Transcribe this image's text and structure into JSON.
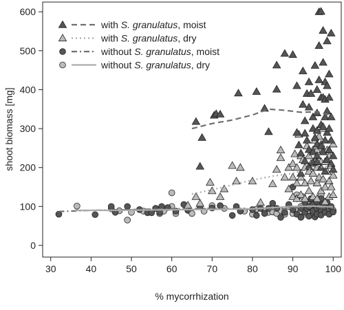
{
  "chart_data": {
    "type": "scatter",
    "title": "",
    "xlabel": "% mycorrhization",
    "ylabel": "shoot biomass [mg]",
    "xlim": [
      28,
      102
    ],
    "ylim": [
      -30,
      625
    ],
    "xticks": [
      30,
      40,
      50,
      60,
      70,
      80,
      90,
      100
    ],
    "yticks": [
      0,
      100,
      200,
      300,
      400,
      500,
      600
    ],
    "grid": false,
    "legend_position": "top-left",
    "series": [
      {
        "name": "with S. granulatus, moist",
        "name_parts": [
          "with ",
          "S. granulatus",
          ", moist"
        ],
        "marker": "triangle",
        "fill": "#555555",
        "line_style": "dashed",
        "line_color": "#6e6e6e",
        "points": [
          [
            66,
            318
          ],
          [
            67,
            203
          ],
          [
            67.5,
            277
          ],
          [
            70.5,
            334
          ],
          [
            71,
            338
          ],
          [
            72,
            337
          ],
          [
            76.5,
            391
          ],
          [
            81,
            395
          ],
          [
            83,
            352
          ],
          [
            84,
            292
          ],
          [
            86,
            401
          ],
          [
            86,
            463
          ],
          [
            88,
            493
          ],
          [
            90,
            490
          ],
          [
            91,
            410
          ],
          [
            91,
            290
          ],
          [
            91.5,
            258
          ],
          [
            92,
            237
          ],
          [
            92,
            185
          ],
          [
            92.5,
            448
          ],
          [
            92.5,
            362
          ],
          [
            93,
            320
          ],
          [
            93,
            288
          ],
          [
            93,
            217
          ],
          [
            93.5,
            390
          ],
          [
            93.5,
            270
          ],
          [
            94,
            420
          ],
          [
            94,
            355
          ],
          [
            94,
            246
          ],
          [
            94,
            202
          ],
          [
            94.5,
            390
          ],
          [
            95,
            330
          ],
          [
            95,
            300
          ],
          [
            95,
            240
          ],
          [
            95,
            213
          ],
          [
            95.5,
            462
          ],
          [
            95.5,
            277
          ],
          [
            96,
            400
          ],
          [
            96,
            340
          ],
          [
            96,
            295
          ],
          [
            96,
            260
          ],
          [
            96,
            230
          ],
          [
            96,
            215
          ],
          [
            96.5,
            600
          ],
          [
            96.5,
            513
          ],
          [
            96.5,
            425
          ],
          [
            97,
            601
          ],
          [
            97,
            380
          ],
          [
            97,
            310
          ],
          [
            97,
            255
          ],
          [
            97,
            200
          ],
          [
            97.5,
            552
          ],
          [
            97.5,
            470
          ],
          [
            97.5,
            380
          ],
          [
            97.5,
            305
          ],
          [
            97.5,
            240
          ],
          [
            98,
            420
          ],
          [
            98,
            375
          ],
          [
            98,
            330
          ],
          [
            98,
            270
          ],
          [
            98,
            190
          ],
          [
            98.5,
            525
          ],
          [
            98.5,
            410
          ],
          [
            98.5,
            345
          ],
          [
            98.5,
            290
          ],
          [
            98.5,
            220
          ],
          [
            99,
            440
          ],
          [
            99,
            380
          ],
          [
            99,
            300
          ],
          [
            99,
            245
          ],
          [
            99.5,
            545
          ],
          [
            99.5,
            330
          ],
          [
            99.5,
            270
          ],
          [
            99.5,
            210
          ],
          [
            100,
            230
          ],
          [
            100,
            195
          ]
        ],
        "trend": [
          [
            65,
            300
          ],
          [
            70,
            313
          ],
          [
            75,
            322
          ],
          [
            80,
            335
          ],
          [
            84,
            350
          ],
          [
            88,
            347
          ],
          [
            92,
            342
          ],
          [
            96,
            343
          ],
          [
            100,
            333
          ]
        ]
      },
      {
        "name": "with S. granulatus, dry",
        "name_parts": [
          "with ",
          "S. granulatus",
          ", dry"
        ],
        "marker": "triangle",
        "fill": "#bbbbbb",
        "line_style": "dotted",
        "line_color": "#aaaaaa",
        "points": [
          [
            64,
            103
          ],
          [
            66,
            125
          ],
          [
            67,
            108
          ],
          [
            69.5,
            162
          ],
          [
            70,
            140
          ],
          [
            72,
            125
          ],
          [
            73,
            145
          ],
          [
            75,
            205
          ],
          [
            76,
            165
          ],
          [
            77,
            200
          ],
          [
            80,
            165
          ],
          [
            82,
            110
          ],
          [
            85,
            158
          ],
          [
            86,
            195
          ],
          [
            87,
            225
          ],
          [
            87,
            245
          ],
          [
            88,
            175
          ],
          [
            89,
            200
          ],
          [
            89,
            145
          ],
          [
            90,
            210
          ],
          [
            90,
            175
          ],
          [
            90,
            125
          ],
          [
            90.5,
            235
          ],
          [
            91,
            200
          ],
          [
            91,
            160
          ],
          [
            91,
            120
          ],
          [
            91.5,
            285
          ],
          [
            92,
            230
          ],
          [
            92,
            175
          ],
          [
            92,
            130
          ],
          [
            92.5,
            220
          ],
          [
            93,
            200
          ],
          [
            93,
            160
          ],
          [
            93,
            120
          ],
          [
            93.5,
            255
          ],
          [
            94,
            230
          ],
          [
            94,
            190
          ],
          [
            94,
            140
          ],
          [
            94.5,
            210
          ],
          [
            94.5,
            165
          ],
          [
            95,
            245
          ],
          [
            95,
            185
          ],
          [
            95,
            125
          ],
          [
            95.5,
            270
          ],
          [
            95.5,
            215
          ],
          [
            96,
            245
          ],
          [
            96,
            200
          ],
          [
            96,
            160
          ],
          [
            96,
            120
          ],
          [
            96.5,
            280
          ],
          [
            96.5,
            175
          ],
          [
            97,
            260
          ],
          [
            97,
            215
          ],
          [
            97,
            140
          ],
          [
            97.5,
            300
          ],
          [
            97.5,
            245
          ],
          [
            97.5,
            170
          ],
          [
            98,
            215
          ],
          [
            98,
            150
          ],
          [
            98,
            112
          ],
          [
            98.5,
            245
          ],
          [
            98.5,
            190
          ],
          [
            99,
            230
          ],
          [
            99,
            165
          ],
          [
            99,
            125
          ],
          [
            99.5,
            205
          ],
          [
            99.5,
            150
          ],
          [
            100,
            260
          ],
          [
            100,
            180
          ],
          [
            100,
            130
          ]
        ],
        "trend": [
          [
            65,
            132
          ],
          [
            70,
            143
          ],
          [
            75,
            155
          ],
          [
            80,
            168
          ],
          [
            85,
            178
          ],
          [
            90,
            185
          ],
          [
            93,
            193
          ],
          [
            96,
            200
          ],
          [
            100,
            205
          ]
        ]
      },
      {
        "name": "without S. granulatus, moist",
        "name_parts": [
          "without ",
          "S. granulatus",
          ", moist"
        ],
        "marker": "circle",
        "fill": "#555555",
        "line_style": "dashdot",
        "line_color": "#6e6e6e",
        "points": [
          [
            32,
            80
          ],
          [
            41,
            79
          ],
          [
            45,
            100
          ],
          [
            46,
            85
          ],
          [
            49,
            100
          ],
          [
            52,
            92
          ],
          [
            54,
            84
          ],
          [
            55,
            84
          ],
          [
            56,
            95
          ],
          [
            57,
            85
          ],
          [
            57.5,
            100
          ],
          [
            59,
            97
          ],
          [
            61,
            88
          ],
          [
            63,
            105
          ],
          [
            64,
            92
          ],
          [
            67,
            100
          ],
          [
            70,
            96
          ],
          [
            72,
            102
          ],
          [
            75,
            77
          ],
          [
            76,
            100
          ],
          [
            77,
            88
          ],
          [
            80,
            92
          ],
          [
            81,
            77
          ],
          [
            82,
            95
          ],
          [
            83,
            82
          ],
          [
            84,
            95
          ],
          [
            85,
            108
          ],
          [
            86,
            95
          ],
          [
            87,
            72
          ],
          [
            88,
            85
          ],
          [
            89,
            105
          ],
          [
            90,
            92
          ],
          [
            90,
            150
          ],
          [
            91,
            80
          ],
          [
            91,
            120
          ],
          [
            92,
            95
          ],
          [
            92,
            72
          ],
          [
            93,
            85
          ],
          [
            93,
            110
          ],
          [
            93.5,
            95
          ],
          [
            94,
            100
          ],
          [
            94,
            75
          ],
          [
            94.5,
            120
          ],
          [
            95,
            88
          ],
          [
            95,
            105
          ],
          [
            95.5,
            73
          ],
          [
            96,
            95
          ],
          [
            96,
            112
          ],
          [
            96,
            80
          ],
          [
            96.5,
            100
          ],
          [
            97,
            120
          ],
          [
            97,
            88
          ],
          [
            97,
            78
          ],
          [
            97.5,
            106
          ],
          [
            98,
            97
          ],
          [
            98,
            85
          ],
          [
            98.5,
            110
          ],
          [
            99,
            92
          ],
          [
            99,
            80
          ],
          [
            99.5,
            100
          ],
          [
            100,
            86
          ]
        ],
        "trend": [
          [
            32,
            87
          ],
          [
            40,
            90
          ],
          [
            50,
            92
          ],
          [
            60,
            94
          ],
          [
            70,
            95
          ],
          [
            80,
            93
          ],
          [
            85,
            92
          ],
          [
            88,
            94
          ],
          [
            92,
            98
          ],
          [
            96,
            98
          ],
          [
            100,
            95
          ]
        ]
      },
      {
        "name": "without S. granulatus, dry",
        "name_parts": [
          "without ",
          "S. granulatus",
          ", dry"
        ],
        "marker": "circle",
        "fill": "#bbbbbb",
        "line_style": "solid",
        "line_color": "#aaaaaa",
        "points": [
          [
            36.5,
            101
          ],
          [
            45,
            94
          ],
          [
            47,
            89
          ],
          [
            49,
            65
          ],
          [
            50,
            85
          ],
          [
            53,
            88
          ],
          [
            56,
            95
          ],
          [
            57,
            82
          ],
          [
            58,
            88
          ],
          [
            60,
            135
          ],
          [
            60,
            100
          ],
          [
            61,
            82
          ],
          [
            64,
            90
          ],
          [
            65,
            82
          ],
          [
            68,
            88
          ],
          [
            70,
            102
          ],
          [
            73,
            95
          ],
          [
            78,
            88
          ],
          [
            80,
            80
          ],
          [
            81,
            93
          ],
          [
            83,
            88
          ],
          [
            84,
            85
          ],
          [
            85,
            86
          ],
          [
            86,
            82
          ],
          [
            87,
            90
          ],
          [
            88,
            80
          ],
          [
            89,
            100
          ],
          [
            90,
            82
          ],
          [
            91,
            130
          ],
          [
            91,
            92
          ],
          [
            91.5,
            80
          ],
          [
            92,
            100
          ],
          [
            92,
            88
          ],
          [
            92.5,
            125
          ],
          [
            93,
            95
          ],
          [
            93,
            80
          ],
          [
            93.5,
            108
          ],
          [
            94,
            90
          ],
          [
            94,
            82
          ],
          [
            94.5,
            95
          ],
          [
            95,
            115
          ],
          [
            95,
            100
          ],
          [
            95,
            85
          ],
          [
            95.5,
            92
          ],
          [
            96,
            104
          ],
          [
            96,
            88
          ],
          [
            96,
            80
          ],
          [
            96.5,
            95
          ],
          [
            97,
            130
          ],
          [
            97,
            98
          ],
          [
            97,
            84
          ],
          [
            97.5,
            90
          ],
          [
            98,
            102
          ],
          [
            98,
            85
          ],
          [
            98.5,
            95
          ],
          [
            99,
            88
          ],
          [
            99,
            100
          ],
          [
            99.5,
            92
          ],
          [
            100,
            90
          ]
        ],
        "trend": [
          [
            36,
            90
          ],
          [
            45,
            90
          ],
          [
            55,
            91
          ],
          [
            65,
            92
          ],
          [
            75,
            93
          ],
          [
            80,
            94
          ],
          [
            85,
            97
          ],
          [
            90,
            100
          ],
          [
            95,
            101
          ],
          [
            100,
            99
          ]
        ]
      }
    ]
  }
}
